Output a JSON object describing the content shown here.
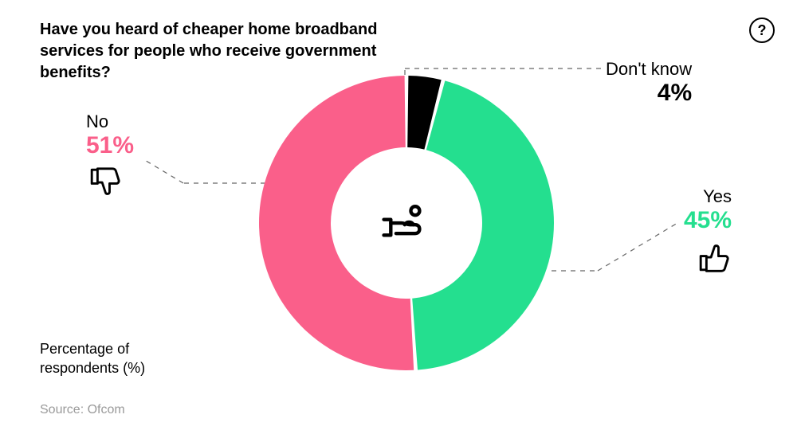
{
  "title": "Have you heard of cheaper home broadband services for people who receive government benefits?",
  "help_glyph": "?",
  "axis_label": "Percentage of respondents (%)",
  "source": "Source: Ofcom",
  "chart": {
    "type": "donut",
    "background_color": "#ffffff",
    "outer_radius": 185,
    "inner_radius": 95,
    "gap_deg": 1.5,
    "start_angle_deg": -90,
    "slices": [
      {
        "key": "dontknow",
        "label": "Don't know",
        "value": 4,
        "color": "#000000"
      },
      {
        "key": "yes",
        "label": "Yes",
        "value": 45,
        "color": "#24df8f"
      },
      {
        "key": "no",
        "label": "No",
        "value": 51,
        "color": "#fa5f8a"
      }
    ],
    "label_colors": {
      "dontknow": "#000000",
      "yes": "#24df8f",
      "no": "#fa5f8a"
    },
    "callout_label_fontsize": 22,
    "callout_pct_fontsize": 30,
    "title_fontsize": 20,
    "leader_color": "#666666",
    "leader_dash": "6 6"
  },
  "callouts": {
    "yes": {
      "label": "Yes",
      "pct": "45%",
      "icon": "thumbs-up"
    },
    "no": {
      "label": "No",
      "pct": "51%",
      "icon": "thumbs-down"
    },
    "dontknow": {
      "label": "Don't know",
      "pct": "4%",
      "icon": null
    }
  },
  "center_icon": "hand-coin"
}
